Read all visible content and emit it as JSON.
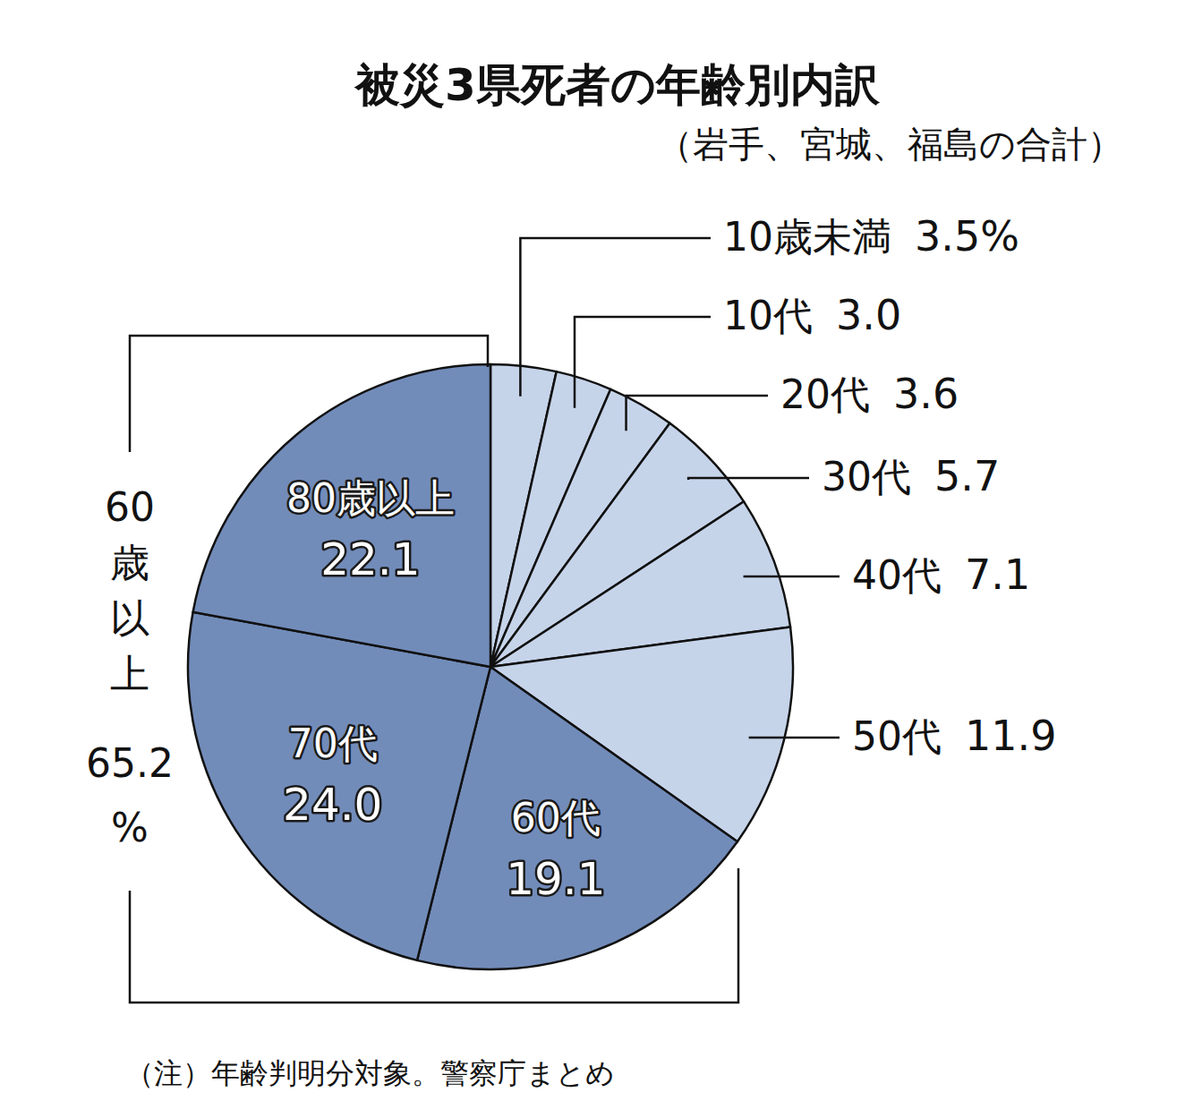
{
  "chart_data": {
    "type": "pie",
    "title": "被災3県死者の年齢別内訳",
    "subtitle": "（岩手、宮城、福島の合計）",
    "note": "（注）年齢判明分対象。警察庁まとめ",
    "categories": [
      "10歳未満",
      "10代",
      "20代",
      "30代",
      "40代",
      "50代",
      "60代",
      "70代",
      "80歳以上"
    ],
    "values": [
      3.5,
      3.0,
      3.6,
      5.7,
      7.1,
      11.9,
      19.1,
      24.0,
      22.1
    ],
    "value_labels": [
      "3.5%",
      "3.0",
      "3.6",
      "5.7",
      "7.1",
      "11.9",
      "19.1",
      "24.0",
      "22.1"
    ],
    "colors": [
      "#c6d4ea",
      "#c6d4ea",
      "#c6d4ea",
      "#c6d4ea",
      "#c6d4ea",
      "#c6d4ea",
      "#728cba",
      "#728cba",
      "#728cba"
    ],
    "data_labels": true,
    "group": {
      "label": "60歳以上",
      "value": 65.2,
      "value_label": "65.2%"
    }
  }
}
